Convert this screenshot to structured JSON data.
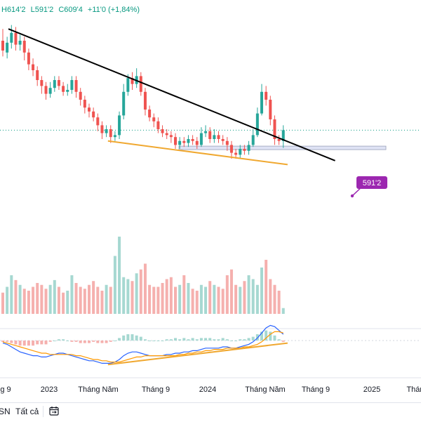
{
  "legend": {
    "high": "H614'2",
    "low": "L591'2",
    "close": "C609'4",
    "change": "+11'0 (+1,84%)"
  },
  "price_badge": "591'2",
  "colors": {
    "up": "#26a69a",
    "down": "#ef5350",
    "up_volume": "#a6d8d1",
    "down_volume": "#f5b0ae",
    "trendline": "#000000",
    "support": "#f0a830",
    "badge": "#9c27b0",
    "macd_line": "#2962ff",
    "signal_line": "#ff9800",
    "current_price_line": "#089981"
  },
  "bottom_bar": {
    "timeframe_partial": "SN",
    "all_label": "Tất cả",
    "calendar_icon": "calendar-icon"
  },
  "chart_data": {
    "type": "candlestick",
    "x_tick_labels": [
      "g 9",
      "2023",
      "Tháng Năm",
      "Tháng 9",
      "2024",
      "Tháng Năm",
      "Tháng 9",
      "2025",
      "Thán"
    ],
    "price_range": [
      520,
      720
    ],
    "candles": [
      [
        700,
        690,
        712,
        684
      ],
      [
        688,
        698,
        704,
        682
      ],
      [
        698,
        708,
        716,
        692
      ],
      [
        708,
        696,
        714,
        690
      ],
      [
        696,
        700,
        706,
        690
      ],
      [
        700,
        688,
        704,
        680
      ],
      [
        688,
        676,
        692,
        670
      ],
      [
        676,
        670,
        682,
        664
      ],
      [
        670,
        660,
        674,
        654
      ],
      [
        660,
        654,
        664,
        646
      ],
      [
        654,
        646,
        658,
        640
      ],
      [
        646,
        652,
        658,
        642
      ],
      [
        652,
        660,
        664,
        648
      ],
      [
        660,
        654,
        664,
        650
      ],
      [
        654,
        648,
        658,
        644
      ],
      [
        648,
        650,
        656,
        644
      ],
      [
        650,
        660,
        664,
        646
      ],
      [
        660,
        648,
        664,
        642
      ],
      [
        648,
        640,
        652,
        634
      ],
      [
        640,
        632,
        644,
        626
      ],
      [
        632,
        628,
        636,
        622
      ],
      [
        628,
        622,
        632,
        618
      ],
      [
        622,
        614,
        626,
        608
      ],
      [
        614,
        606,
        618,
        600
      ],
      [
        606,
        610,
        614,
        602
      ],
      [
        610,
        602,
        614,
        596
      ],
      [
        602,
        604,
        608,
        598
      ],
      [
        604,
        624,
        628,
        600
      ],
      [
        624,
        648,
        656,
        620
      ],
      [
        648,
        662,
        666,
        644
      ],
      [
        662,
        656,
        668,
        650
      ],
      [
        656,
        664,
        672,
        652
      ],
      [
        664,
        648,
        668,
        644
      ],
      [
        648,
        630,
        652,
        624
      ],
      [
        630,
        622,
        634,
        618
      ],
      [
        622,
        618,
        626,
        612
      ],
      [
        618,
        610,
        622,
        606
      ],
      [
        610,
        606,
        614,
        602
      ],
      [
        606,
        604,
        610,
        600
      ],
      [
        604,
        602,
        608,
        596
      ],
      [
        602,
        594,
        606,
        590
      ],
      [
        594,
        598,
        602,
        590
      ],
      [
        598,
        596,
        602,
        592
      ],
      [
        596,
        600,
        604,
        592
      ],
      [
        600,
        598,
        604,
        594
      ],
      [
        598,
        594,
        602,
        590
      ],
      [
        594,
        606,
        612,
        592
      ],
      [
        606,
        608,
        614,
        602
      ],
      [
        608,
        600,
        612,
        596
      ],
      [
        600,
        604,
        610,
        596
      ],
      [
        604,
        600,
        608,
        596
      ],
      [
        600,
        598,
        604,
        594
      ],
      [
        598,
        594,
        602,
        588
      ],
      [
        594,
        586,
        598,
        580
      ],
      [
        586,
        584,
        590,
        580
      ],
      [
        584,
        590,
        594,
        580
      ],
      [
        590,
        588,
        594,
        584
      ],
      [
        588,
        594,
        598,
        584
      ],
      [
        594,
        604,
        610,
        592
      ],
      [
        604,
        626,
        632,
        602
      ],
      [
        626,
        648,
        656,
        624
      ],
      [
        648,
        640,
        654,
        634
      ],
      [
        640,
        620,
        644,
        614
      ],
      [
        620,
        600,
        624,
        594
      ],
      [
        600,
        598,
        604,
        594
      ],
      [
        598,
        609,
        614,
        591
      ]
    ],
    "volume": [
      22,
      28,
      40,
      35,
      30,
      26,
      24,
      28,
      32,
      30,
      26,
      30,
      35,
      28,
      22,
      24,
      40,
      32,
      28,
      26,
      30,
      34,
      28,
      24,
      30,
      28,
      60,
      80,
      38,
      36,
      34,
      42,
      46,
      52,
      30,
      28,
      28,
      32,
      36,
      38,
      28,
      30,
      40,
      32,
      26,
      24,
      30,
      28,
      34,
      30,
      28,
      26,
      40,
      46,
      30,
      28,
      34,
      40,
      36,
      30,
      48,
      56,
      36,
      30,
      24,
      6
    ],
    "trendline": {
      "from": [
        0,
        712
      ],
      "to": [
        77,
        578
      ]
    },
    "support_line": {
      "from": [
        19,
        598
      ],
      "to": [
        66,
        574
      ]
    },
    "horizontal_level": 591,
    "macd": [
      -2,
      -3,
      -5,
      -7,
      -9,
      -10,
      -11,
      -12,
      -12,
      -13,
      -13,
      -12,
      -11,
      -10,
      -10,
      -11,
      -12,
      -13,
      -14,
      -15,
      -16,
      -16,
      -17,
      -18,
      -18,
      -18,
      -17,
      -15,
      -12,
      -10,
      -9,
      -9,
      -10,
      -11,
      -12,
      -12,
      -12,
      -12,
      -11,
      -11,
      -10,
      -10,
      -9,
      -9,
      -8,
      -8,
      -7,
      -6,
      -6,
      -6,
      -6,
      -5,
      -5,
      -6,
      -6,
      -5,
      -4,
      -3,
      -1,
      2,
      6,
      10,
      12,
      11,
      8,
      5
    ],
    "signal": [
      -1,
      -2,
      -3,
      -4,
      -5,
      -6,
      -7,
      -8,
      -9,
      -10,
      -10,
      -11,
      -11,
      -11,
      -11,
      -11,
      -11,
      -12,
      -12,
      -13,
      -14,
      -15,
      -15,
      -16,
      -16,
      -17,
      -17,
      -17,
      -16,
      -15,
      -14,
      -13,
      -13,
      -12,
      -12,
      -12,
      -12,
      -12,
      -12,
      -12,
      -12,
      -11,
      -11,
      -10,
      -10,
      -9,
      -9,
      -8,
      -8,
      -7,
      -7,
      -7,
      -6,
      -6,
      -6,
      -6,
      -5,
      -5,
      -4,
      -3,
      -1,
      2,
      5,
      7,
      7,
      6
    ],
    "macd_support": {
      "from": [
        19,
        -19
      ],
      "to": [
        66,
        -2
      ]
    }
  }
}
